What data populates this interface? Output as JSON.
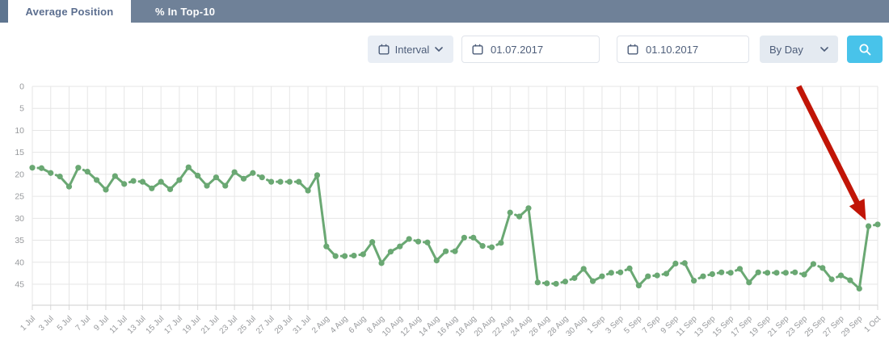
{
  "tabs": [
    {
      "label": "Average Position",
      "active": true
    },
    {
      "label": "% In Top-10",
      "active": false
    }
  ],
  "toolbar": {
    "interval_label": "Interval",
    "date_from": "01.07.2017",
    "date_to": "01.10.2017",
    "granularity": "By Day"
  },
  "colors": {
    "tab_bar": "#6f8198",
    "tab_bar_dark_sliver": "#5e7590",
    "active_tab_text": "#5b6e8f",
    "control_text": "#4d5d79",
    "search_button": "#48c3ea",
    "series_green": "#6aa873",
    "grid": "#e6e6e6",
    "axis": "#cfcfcf",
    "tick_text": "#97999c",
    "arrow_red": "#c11507"
  },
  "chart_data": {
    "type": "line",
    "title": "",
    "xlabel": "",
    "ylabel": "",
    "series_name": "Average Position",
    "y_inverted": true,
    "ylim": [
      0,
      50
    ],
    "y_ticks": [
      0,
      5,
      10,
      15,
      20,
      25,
      30,
      35,
      40,
      45
    ],
    "grid": true,
    "months": [
      {
        "name": "Jul",
        "days": 31
      },
      {
        "name": "Aug",
        "days": 31
      },
      {
        "name": "Sep",
        "days": 30
      },
      {
        "name": "Oct",
        "days": 1
      }
    ],
    "x_tick_labels": [
      "1 Jul",
      "3 Jul",
      "5 Jul",
      "7 Jul",
      "9 Jul",
      "11 Jul",
      "13 Jul",
      "15 Jul",
      "17 Jul",
      "19 Jul",
      "21 Jul",
      "23 Jul",
      "25 Jul",
      "27 Jul",
      "29 Jul",
      "31 Jul",
      "2 Aug",
      "4 Aug",
      "6 Aug",
      "8 Aug",
      "10 Aug",
      "12 Aug",
      "14 Aug",
      "16 Aug",
      "18 Aug",
      "20 Aug",
      "22 Aug",
      "24 Aug",
      "26 Aug",
      "28 Aug",
      "30 Aug",
      "1 Sep",
      "3 Sep",
      "5 Sep",
      "7 Sep",
      "9 Sep",
      "11 Sep",
      "13 Sep",
      "15 Sep",
      "17 Sep",
      "19 Sep",
      "21 Sep",
      "23 Sep",
      "25 Sep",
      "27 Sep",
      "29 Sep",
      "1 Oct"
    ],
    "values": [
      18.5,
      18.6,
      19.7,
      20.5,
      22.8,
      18.5,
      19.4,
      21.3,
      23.5,
      20.4,
      22.2,
      21.5,
      21.7,
      23.2,
      21.7,
      23.4,
      21.3,
      18.4,
      20.3,
      22.6,
      20.7,
      22.6,
      19.5,
      21.0,
      19.7,
      20.7,
      21.7,
      21.7,
      21.7,
      21.7,
      23.7,
      20.2,
      36.4,
      38.6,
      38.6,
      38.5,
      38.2,
      35.4,
      40.2,
      37.6,
      36.4,
      34.7,
      35.3,
      35.5,
      39.6,
      37.5,
      37.5,
      34.4,
      34.4,
      36.3,
      36.6,
      35.6,
      28.7,
      29.6,
      27.7,
      44.6,
      44.8,
      44.9,
      44.4,
      43.6,
      41.5,
      44.3,
      43.2,
      42.4,
      42.3,
      41.4,
      45.3,
      43.2,
      43.0,
      42.6,
      40.3,
      40.2,
      44.2,
      43.2,
      42.7,
      42.3,
      42.4,
      41.5,
      44.6,
      42.3,
      42.4,
      42.4,
      42.4,
      42.3,
      42.8,
      40.4,
      41.3,
      43.9,
      43.0,
      44.1,
      46.0,
      31.8,
      31.4
    ],
    "annotation_arrow": {
      "description": "red arrow pointing at the jump to ~31 on 30 Sep - 1 Oct",
      "from_day_index": 83.4,
      "from_value": 1.1,
      "to_day_index": 90.6,
      "to_value": 30.0
    }
  }
}
